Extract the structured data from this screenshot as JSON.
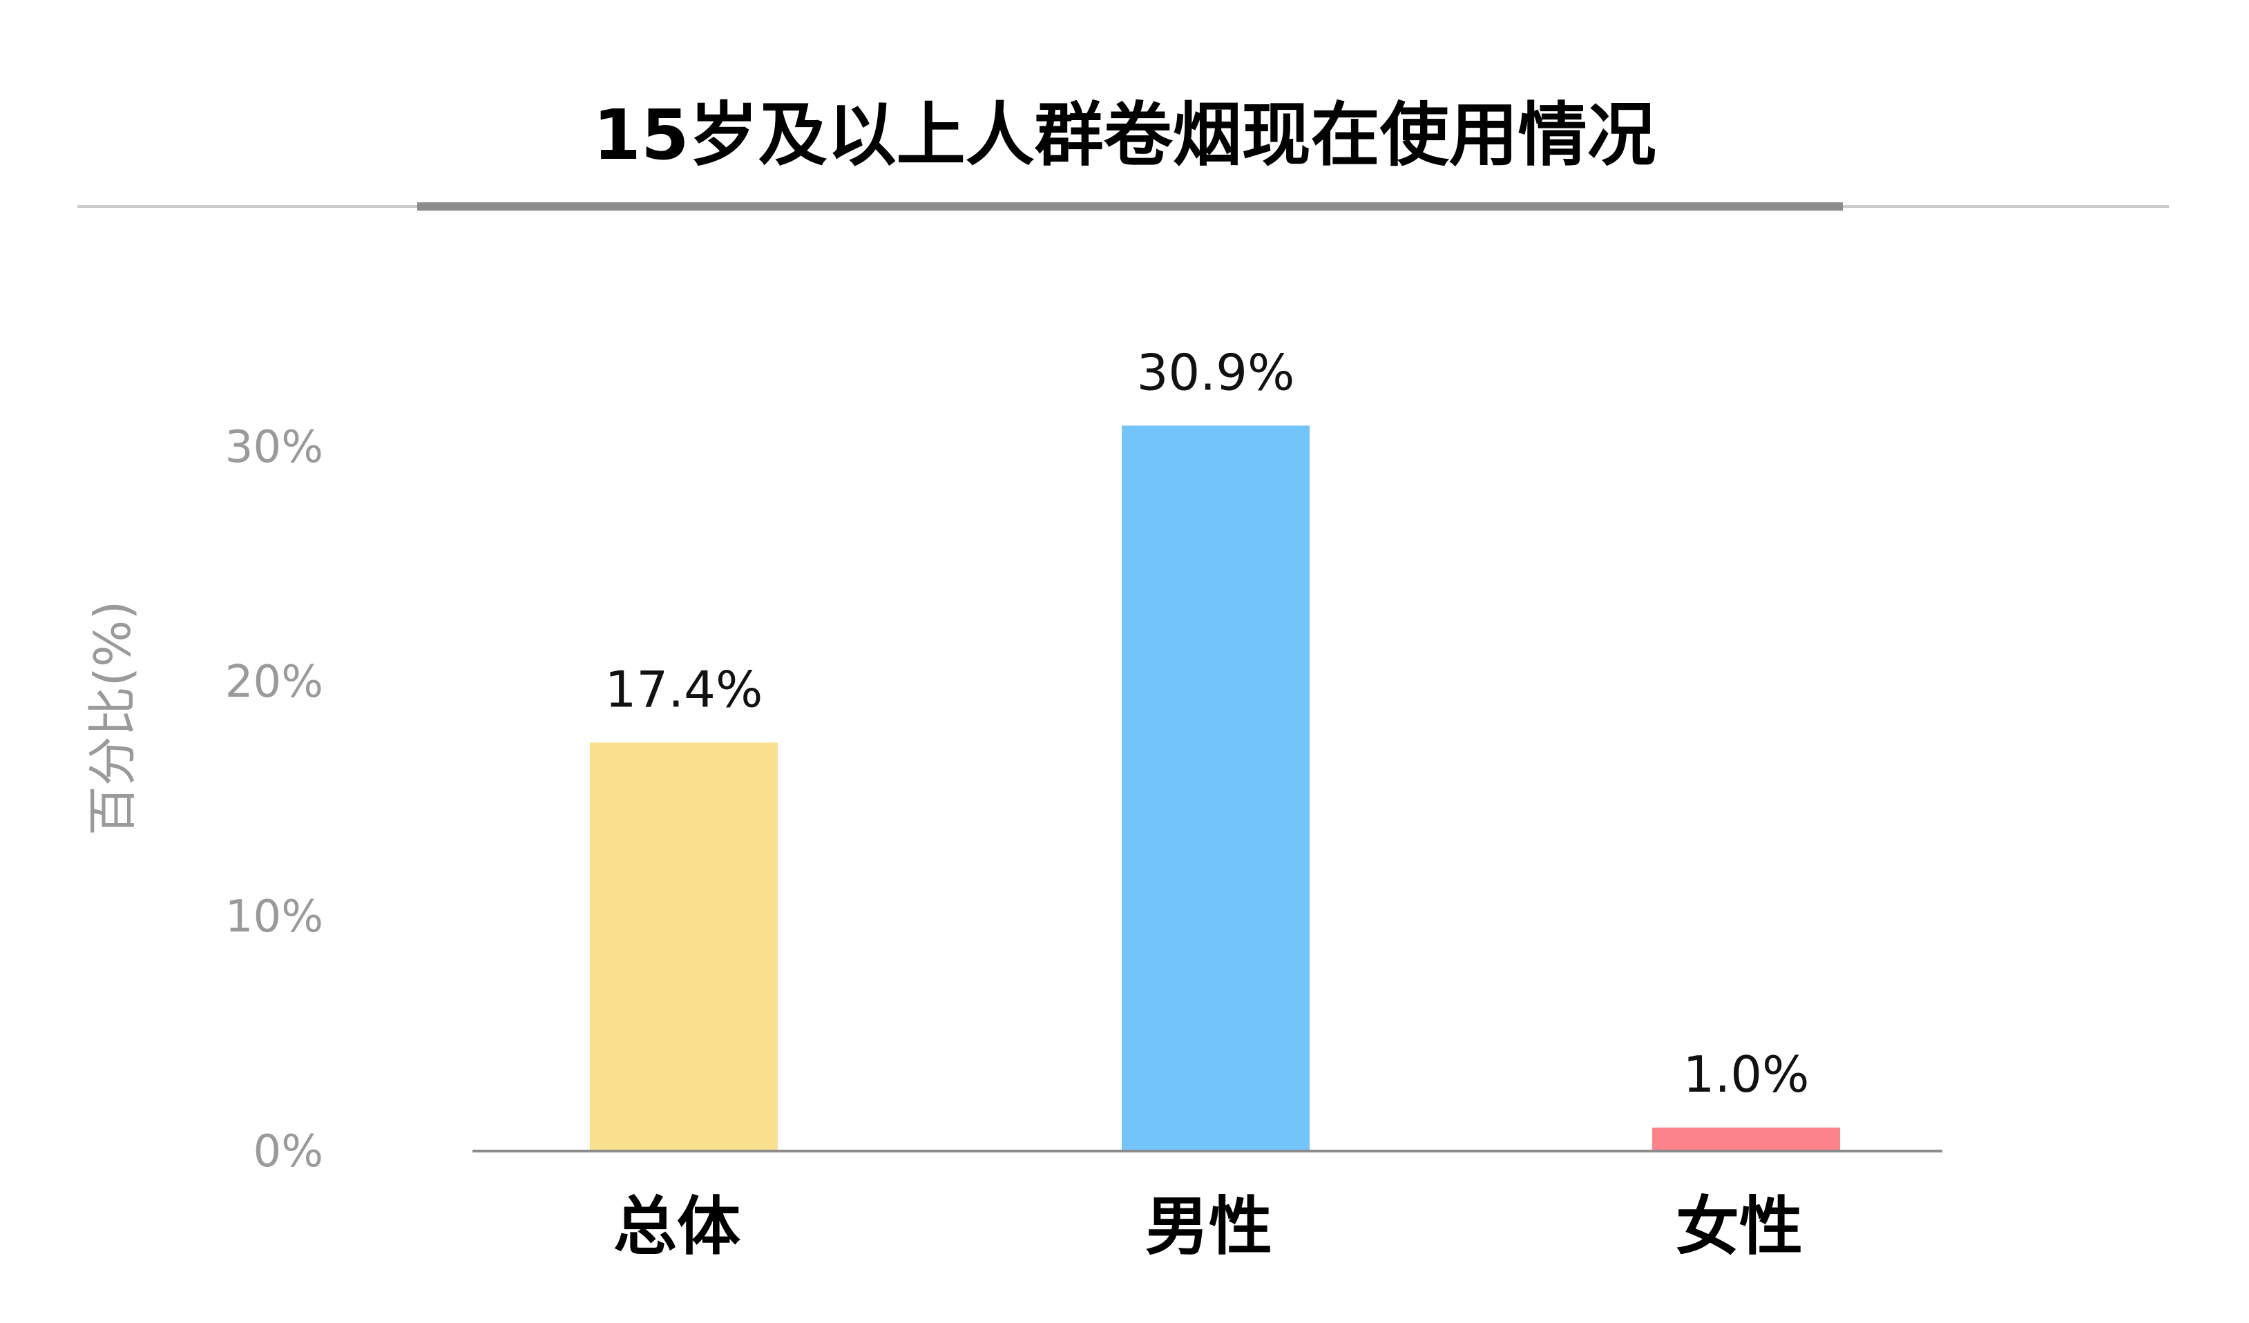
{
  "chart_data": {
    "type": "bar",
    "title": "15岁及以上人群卷烟现在使用情况",
    "ylabel": "百分比(%)",
    "xlabel": "",
    "categories": [
      "总体",
      "男性",
      "女性"
    ],
    "values": [
      17.4,
      30.9,
      1.0
    ],
    "value_labels": [
      "17.4%",
      "30.9%",
      "1.0%"
    ],
    "colors": [
      "#F9E08E",
      "#73C4FA",
      "#FC838B"
    ],
    "ylim": [
      0,
      30
    ],
    "yticks": [
      0,
      10,
      20,
      30
    ],
    "ytick_labels": [
      "0%",
      "10%",
      "20%",
      "30%"
    ],
    "grid": false,
    "legend": "none"
  },
  "colors": {
    "title_underline": "#8c8c8c",
    "title_rule": "#cccccc",
    "axis": "#8c8c8c",
    "tick_text": "#9a9a9a"
  }
}
